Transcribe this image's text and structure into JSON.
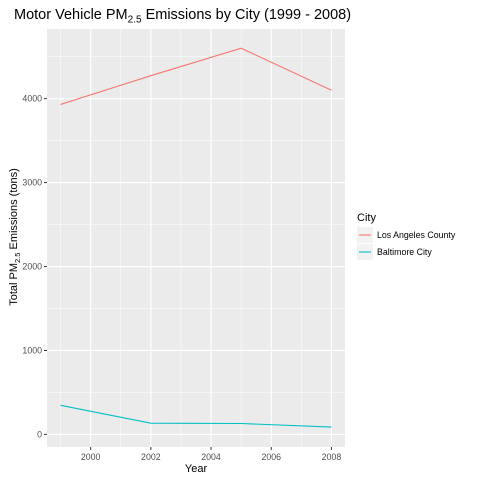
{
  "chart_data": {
    "type": "line",
    "title": {
      "prefix": "Motor Vehicle PM",
      "subscript": "2.5",
      "suffix": " Emissions by City (1999 - 2008)"
    },
    "xlabel": "Year",
    "ylabel": {
      "prefix": "Total PM",
      "subscript": "2.5",
      "suffix": " Emissions (tons)"
    },
    "x": [
      1999,
      2002,
      2005,
      2008
    ],
    "xlim": [
      1998.55,
      2008.45
    ],
    "ylim": [
      -150,
      4830
    ],
    "x_ticks": [
      2000,
      2002,
      2004,
      2006,
      2008
    ],
    "x_tick_labels": [
      "2000",
      "2002",
      "2004",
      "2006",
      "2008"
    ],
    "y_ticks": [
      0,
      1000,
      2000,
      3000,
      4000
    ],
    "y_tick_labels": [
      "0",
      "1000",
      "2000",
      "3000",
      "4000"
    ],
    "x_minor": [
      1999,
      2001,
      2003,
      2005,
      2007
    ],
    "y_minor": [
      500,
      1500,
      2500,
      3500,
      4500
    ],
    "grid": true,
    "legend": {
      "title": "City",
      "position": "right"
    },
    "series": [
      {
        "name": "Los Angeles County",
        "color": "#F8766D",
        "values": [
          3931,
          4274,
          4601,
          4101
        ]
      },
      {
        "name": "Baltimore City",
        "color": "#00BFC4",
        "values": [
          347,
          134,
          130,
          88
        ]
      }
    ]
  }
}
